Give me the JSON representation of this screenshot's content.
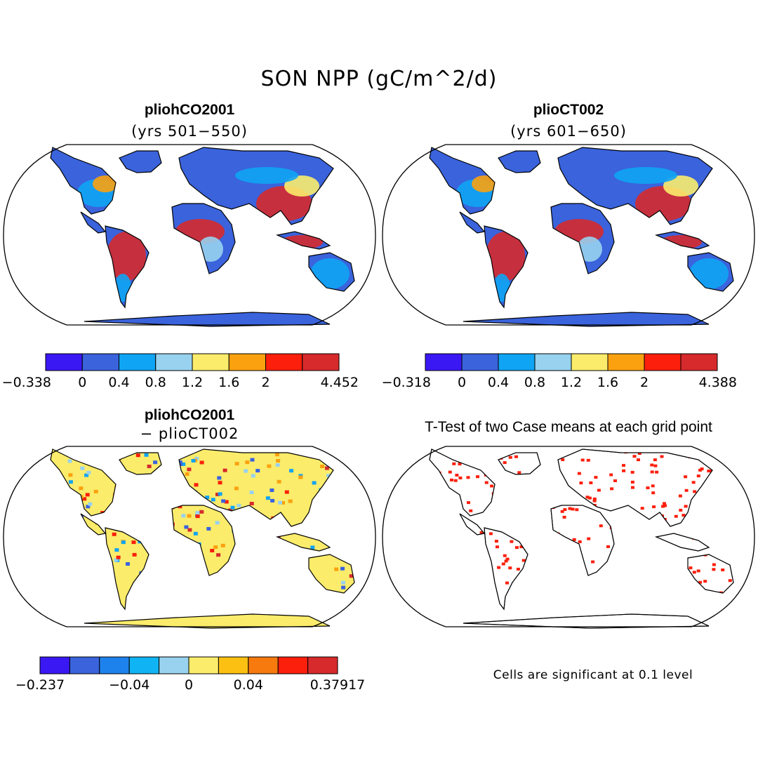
{
  "title": "SON NPP (gC/m^2/d)",
  "panels": {
    "top_left": {
      "title": "pliohCO2001",
      "subtitle": "(yrs 501−550)"
    },
    "top_right": {
      "title": "plioCT002",
      "subtitle": "(yrs 601−650)"
    },
    "bottom_left": {
      "title": "pliohCO2001",
      "subtitle": "− plioCT002"
    },
    "bottom_right": {
      "title": "T-Test of two Case means at each grid point",
      "note": "Cells are significant at 0.1 level"
    }
  },
  "colorbars": {
    "top_left": {
      "colors": [
        "#3a18f4",
        "#3a63dc",
        "#10a4f4",
        "#98d2ee",
        "#fbec6b",
        "#fba10f",
        "#fb1f0c",
        "#d62a2c"
      ],
      "labels": [
        "−0.338",
        "0",
        "0.4",
        "0.8",
        "1.2",
        "1.6",
        "2",
        "4.452"
      ]
    },
    "top_right": {
      "colors": [
        "#3a18f4",
        "#3a63dc",
        "#10a4f4",
        "#98d2ee",
        "#fbec6b",
        "#fba10f",
        "#fb1f0c",
        "#d62a2c"
      ],
      "labels": [
        "−0.318",
        "0",
        "0.4",
        "0.8",
        "1.2",
        "1.6",
        "2",
        "4.388"
      ]
    },
    "bottom_left": {
      "colors": [
        "#3a18f4",
        "#3a63dc",
        "#1e82ec",
        "#10b4f4",
        "#98d2ee",
        "#fbec6b",
        "#fbc012",
        "#f67a0d",
        "#fb1f0c",
        "#d62a2c"
      ],
      "labels": [
        "−0.237",
        "−0.04",
        "0",
        "0.04",
        "0.37917"
      ]
    }
  },
  "map_colors": {
    "ocean": "#ffffff",
    "high_lat": "#3a63dc",
    "mid": "#10a4f4",
    "light": "#98d2ee",
    "yellow": "#fbec6b",
    "orange": "#fba10f",
    "red": "#fb1f0c",
    "dark_red": "#d62a2c",
    "significant": "#fb1f0c"
  }
}
